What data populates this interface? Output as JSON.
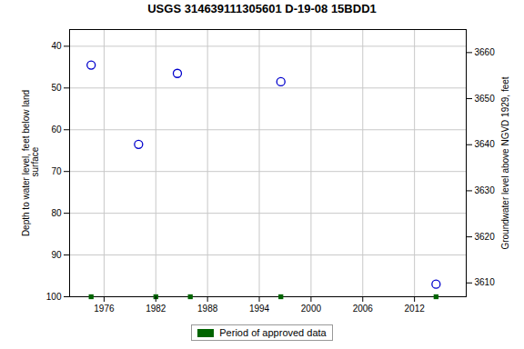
{
  "chart_data": {
    "type": "scatter",
    "title": "USGS 314639111305601 D-19-08 15BDD1",
    "ylabel": "Depth to water level, feet below land\n surface",
    "y2label": "Groundwater level above NGVD 1929, feet",
    "xlim": [
      1972,
      2018
    ],
    "xticks": [
      1976,
      1982,
      1988,
      1994,
      2000,
      2006,
      2012
    ],
    "ylim": [
      100,
      36
    ],
    "yticks": [
      40,
      50,
      60,
      70,
      80,
      90,
      100
    ],
    "y2lim": [
      3607,
      3665
    ],
    "y2ticks": [
      3610,
      3620,
      3630,
      3640,
      3650,
      3660
    ],
    "grid": true,
    "legend": "bottom",
    "series": [
      {
        "x": [
          1974.5,
          1980.0,
          1984.5,
          1996.5,
          2014.5
        ],
        "values": [
          44.5,
          63.5,
          46.5,
          48.5,
          97.0
        ],
        "color": "#0000cc",
        "marker": "circle"
      },
      {
        "name": "Period of approved data",
        "x": [
          1974.5,
          1982.0,
          1986.0,
          1996.5,
          2014.5
        ],
        "values": [
          100,
          100,
          100,
          100,
          100
        ],
        "color": "#006400",
        "marker": "square"
      }
    ]
  }
}
